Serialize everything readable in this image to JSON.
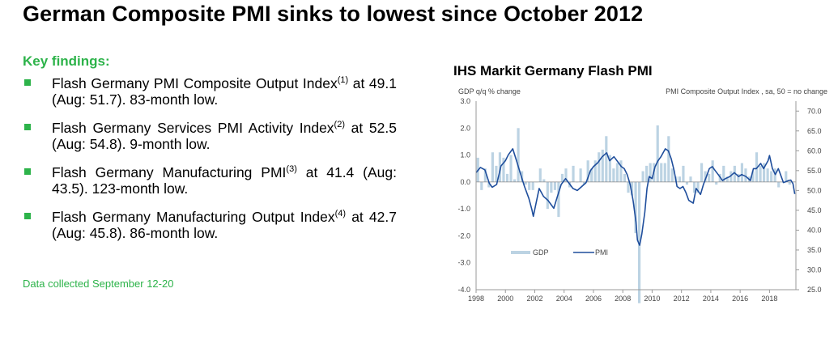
{
  "headline": "German Composite PMI sinks to lowest since October 2012",
  "key_findings": {
    "heading": "Key findings:",
    "items": [
      {
        "pre": "Flash Germany PMI Composite Output Index",
        "ref": "(1)",
        "post": " at 49.1 (Aug: 51.7). 83-month low."
      },
      {
        "pre": "Flash Germany Services PMI Activity Index",
        "ref": "(2)",
        "post": " at 52.5 (Aug: 54.8). 9-month low."
      },
      {
        "pre": "Flash Germany Manufacturing PMI",
        "ref": "(3)",
        "post": " at 41.4 (Aug: 43.5). 123-month low."
      },
      {
        "pre": "Flash Germany Manufacturing Output Index",
        "ref": "(4)",
        "post": " at 42.7 (Aug: 45.8). 86-month low."
      }
    ],
    "note": "Data collected September 12-20"
  },
  "chart_data": {
    "type": "bar+line",
    "title": "IHS Markit Germany Flash PMI",
    "left_axis_label": "GDP q/q % change",
    "right_axis_label": "PMI Composite Output Index , sa, 50 = no change",
    "left_ylim": [
      -4.0,
      3.0
    ],
    "left_ticks": [
      "3.0",
      "2.0",
      "1.0",
      "0.0",
      "-1.0",
      "-2.0",
      "-3.0",
      "-4.0"
    ],
    "right_ylim": [
      25.0,
      72.5
    ],
    "right_ticks": [
      "70.0",
      "65.0",
      "60.0",
      "55.0",
      "50.0",
      "45.0",
      "40.0",
      "35.0",
      "30.0",
      "25.0"
    ],
    "x_ticks": [
      "1998",
      "2000",
      "2002",
      "2004",
      "2006",
      "2008",
      "2010",
      "2012",
      "2014",
      "2016",
      "2018"
    ],
    "xlim": [
      1998.0,
      2019.8
    ],
    "legend": {
      "gdp": "GDP",
      "pmi": "PMI"
    },
    "colors": {
      "gdp": "#bcd3e3",
      "pmi": "#1f4e9c",
      "axis": "#9a9a9a"
    },
    "gdp_quarterly": {
      "start": 1998.0,
      "step": 0.25,
      "values": [
        0.9,
        -0.3,
        0.5,
        -0.2,
        1.1,
        0.6,
        1.1,
        0.9,
        0.3,
        1.0,
        0.1,
        2.0,
        0.4,
        -0.1,
        -0.3,
        -0.3,
        0.0,
        0.5,
        0.1,
        -1.0,
        -0.4,
        -0.3,
        -1.3,
        0.3,
        0.5,
        -0.2,
        0.6,
        0.0,
        0.5,
        -0.1,
        0.8,
        0.5,
        0.8,
        1.1,
        1.2,
        1.7,
        1.0,
        0.5,
        0.7,
        0.8,
        0.3,
        -0.4,
        -0.5,
        -1.9,
        -4.5,
        0.4,
        0.6,
        0.7,
        0.7,
        2.1,
        0.7,
        0.7,
        1.7,
        0.5,
        0.2,
        0.2,
        0.6,
        -0.1,
        0.2,
        -0.4,
        -0.4,
        0.7,
        0.4,
        0.3,
        0.8,
        -0.1,
        0.3,
        0.6,
        0.2,
        0.4,
        0.6,
        0.3,
        0.7,
        0.5,
        0.2,
        0.4,
        1.1,
        0.6,
        0.7,
        0.5,
        0.4,
        0.5,
        -0.2,
        0.0,
        0.4,
        -0.1
      ]
    },
    "pmi_series": [
      [
        1998.0,
        54.5
      ],
      [
        1998.3,
        55.8
      ],
      [
        1998.6,
        55.2
      ],
      [
        1998.9,
        51.8
      ],
      [
        1999.1,
        50.8
      ],
      [
        1999.4,
        51.5
      ],
      [
        1999.7,
        56.2
      ],
      [
        2000.0,
        57.5
      ],
      [
        2000.2,
        59.0
      ],
      [
        2000.5,
        60.5
      ],
      [
        2000.8,
        57.0
      ],
      [
        2001.0,
        54.5
      ],
      [
        2001.3,
        51.0
      ],
      [
        2001.6,
        48.0
      ],
      [
        2001.8,
        45.2
      ],
      [
        2001.9,
        43.5
      ],
      [
        2002.1,
        47.0
      ],
      [
        2002.3,
        50.5
      ],
      [
        2002.6,
        48.5
      ],
      [
        2002.9,
        47.5
      ],
      [
        2003.1,
        46.5
      ],
      [
        2003.3,
        45.5
      ],
      [
        2003.5,
        48.0
      ],
      [
        2003.8,
        51.5
      ],
      [
        2004.1,
        53.0
      ],
      [
        2004.4,
        51.5
      ],
      [
        2004.6,
        50.5
      ],
      [
        2004.9,
        50.0
      ],
      [
        2005.2,
        51.0
      ],
      [
        2005.5,
        52.0
      ],
      [
        2005.8,
        55.0
      ],
      [
        2006.0,
        56.0
      ],
      [
        2006.3,
        57.0
      ],
      [
        2006.6,
        58.5
      ],
      [
        2006.9,
        59.5
      ],
      [
        2007.1,
        57.5
      ],
      [
        2007.4,
        58.5
      ],
      [
        2007.7,
        57.0
      ],
      [
        2007.9,
        56.0
      ],
      [
        2008.1,
        55.5
      ],
      [
        2008.3,
        54.0
      ],
      [
        2008.5,
        51.5
      ],
      [
        2008.7,
        47.5
      ],
      [
        2008.9,
        42.0
      ],
      [
        2009.0,
        37.5
      ],
      [
        2009.15,
        36.2
      ],
      [
        2009.3,
        39.0
      ],
      [
        2009.5,
        44.5
      ],
      [
        2009.65,
        50.5
      ],
      [
        2009.8,
        53.5
      ],
      [
        2010.0,
        53.0
      ],
      [
        2010.2,
        56.0
      ],
      [
        2010.4,
        57.5
      ],
      [
        2010.6,
        58.5
      ],
      [
        2010.9,
        60.5
      ],
      [
        2011.1,
        60.0
      ],
      [
        2011.3,
        58.0
      ],
      [
        2011.5,
        55.0
      ],
      [
        2011.7,
        51.0
      ],
      [
        2011.9,
        50.5
      ],
      [
        2012.1,
        51.0
      ],
      [
        2012.3,
        49.5
      ],
      [
        2012.5,
        47.5
      ],
      [
        2012.8,
        46.8
      ],
      [
        2013.0,
        50.5
      ],
      [
        2013.3,
        49.0
      ],
      [
        2013.5,
        51.5
      ],
      [
        2013.7,
        53.5
      ],
      [
        2013.9,
        55.5
      ],
      [
        2014.1,
        56.0
      ],
      [
        2014.3,
        55.0
      ],
      [
        2014.5,
        54.0
      ],
      [
        2014.8,
        52.5
      ],
      [
        2015.0,
        53.0
      ],
      [
        2015.3,
        53.5
      ],
      [
        2015.6,
        54.5
      ],
      [
        2015.9,
        53.5
      ],
      [
        2016.1,
        54.0
      ],
      [
        2016.4,
        53.5
      ],
      [
        2016.7,
        52.5
      ],
      [
        2016.9,
        55.5
      ],
      [
        2017.1,
        55.5
      ],
      [
        2017.4,
        56.8
      ],
      [
        2017.6,
        55.5
      ],
      [
        2017.9,
        57.5
      ],
      [
        2018.0,
        58.8
      ],
      [
        2018.2,
        55.5
      ],
      [
        2018.4,
        54.0
      ],
      [
        2018.6,
        55.5
      ],
      [
        2018.8,
        53.5
      ],
      [
        2018.95,
        52.0
      ],
      [
        2019.1,
        52.2
      ],
      [
        2019.3,
        52.5
      ],
      [
        2019.45,
        52.6
      ],
      [
        2019.6,
        51.7
      ],
      [
        2019.72,
        49.1
      ]
    ]
  }
}
